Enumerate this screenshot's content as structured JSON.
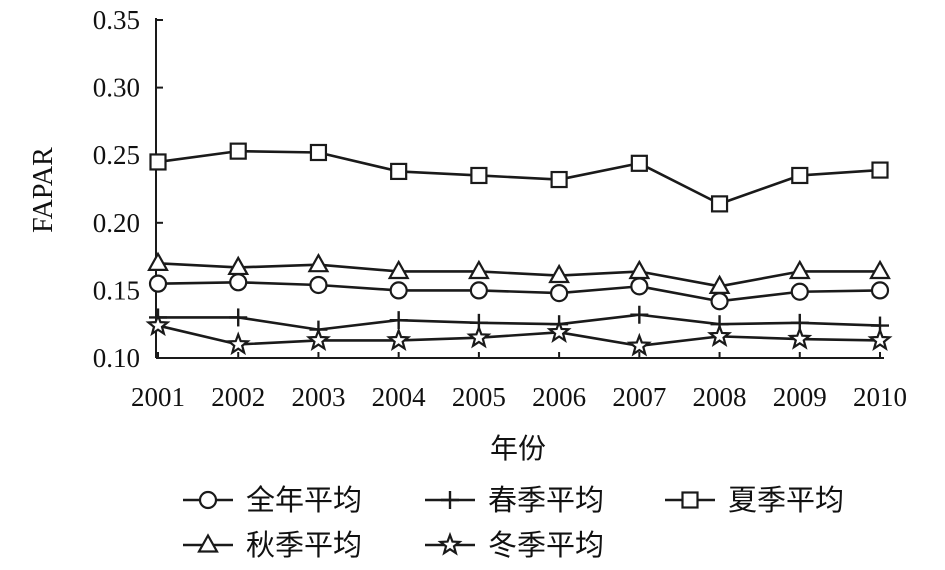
{
  "chart_data": {
    "type": "line",
    "categories": [
      "2001",
      "2002",
      "2003",
      "2004",
      "2005",
      "2006",
      "2007",
      "2008",
      "2009",
      "2010"
    ],
    "xlabel": "年份",
    "ylabel": "FAPAR",
    "ylim": [
      0.1,
      0.35
    ],
    "ytick_labels": [
      "0.10",
      "0.15",
      "0.20",
      "0.25",
      "0.30",
      "0.35"
    ],
    "grid": false,
    "legend": "bottom",
    "line_color": "#1a1a1a",
    "series": [
      {
        "name": "全年平均",
        "marker": "circle-marker",
        "values": [
          0.155,
          0.156,
          0.154,
          0.15,
          0.15,
          0.148,
          0.153,
          0.142,
          0.149,
          0.15
        ]
      },
      {
        "name": "春季平均",
        "marker": "plus-marker",
        "values": [
          0.13,
          0.13,
          0.121,
          0.128,
          0.126,
          0.125,
          0.132,
          0.125,
          0.126,
          0.124
        ]
      },
      {
        "name": "夏季平均",
        "marker": "square-marker",
        "values": [
          0.245,
          0.253,
          0.252,
          0.238,
          0.235,
          0.232,
          0.244,
          0.214,
          0.235,
          0.239
        ]
      },
      {
        "name": "秋季平均",
        "marker": "triangle-marker",
        "values": [
          0.17,
          0.167,
          0.169,
          0.164,
          0.164,
          0.161,
          0.164,
          0.153,
          0.164,
          0.164
        ]
      },
      {
        "name": "冬季平均",
        "marker": "star-marker",
        "values": [
          0.124,
          0.11,
          0.113,
          0.113,
          0.115,
          0.119,
          0.109,
          0.116,
          0.114,
          0.113
        ]
      }
    ]
  }
}
